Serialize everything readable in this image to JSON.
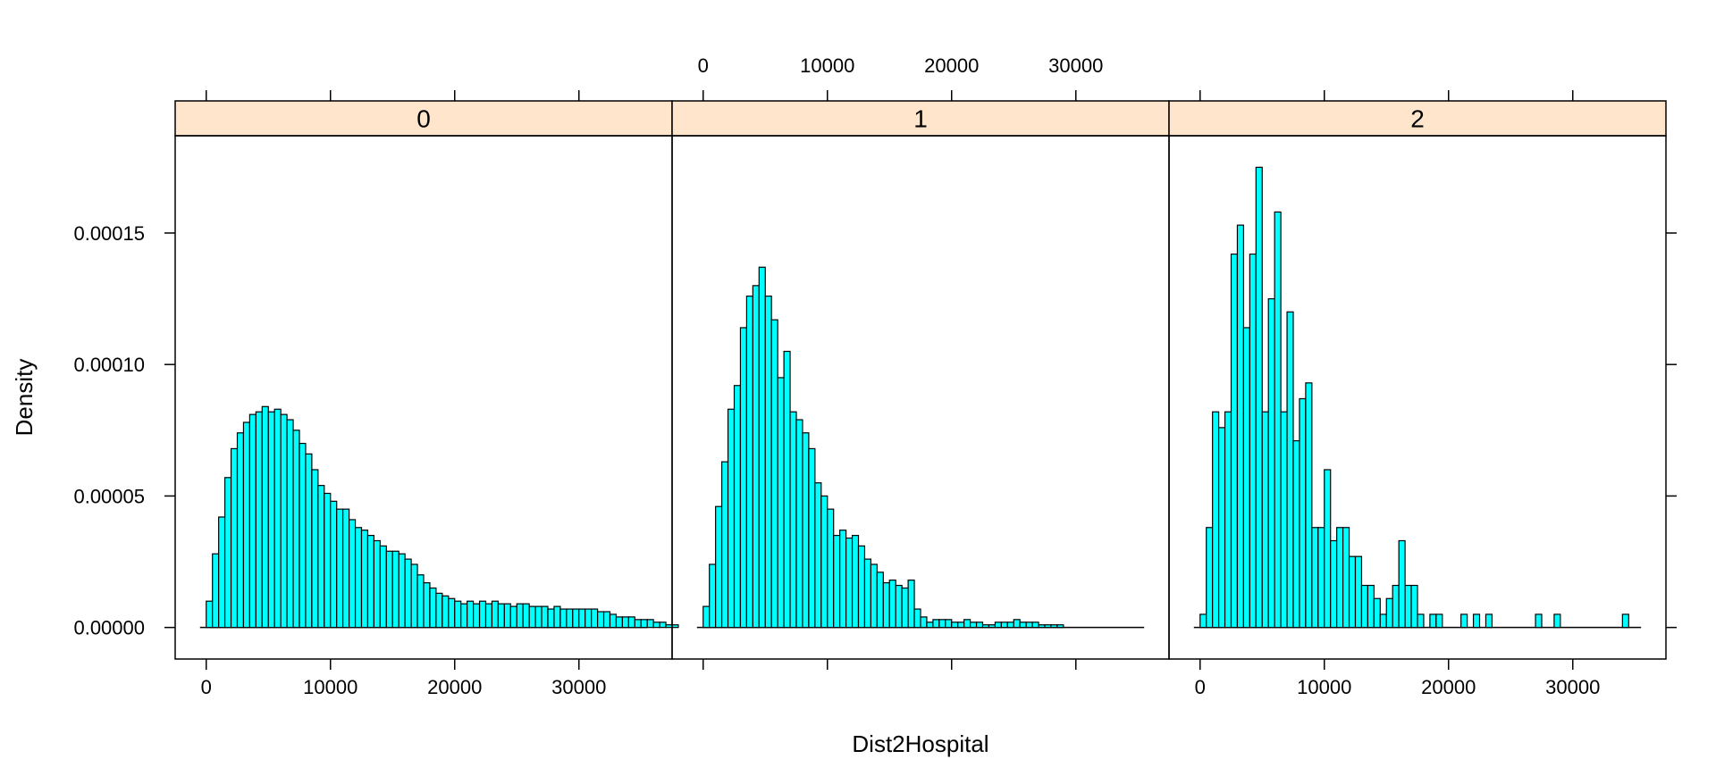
{
  "chart_data": {
    "type": "bar",
    "subtype": "histogram-trellis",
    "xlabel": "Dist2Hospital",
    "ylabel": "Density",
    "xlim": [
      -2500,
      37500
    ],
    "ylim": [
      -1.2e-05,
      0.000187
    ],
    "x_ticks": [
      0,
      10000,
      20000,
      30000
    ],
    "x_tick_labels": [
      "0",
      "10000",
      "20000",
      "30000"
    ],
    "y_ticks": [
      0,
      5e-05,
      0.0001,
      0.00015
    ],
    "y_tick_labels": [
      "0.00000",
      "0.00005",
      "0.00010",
      "0.00015"
    ],
    "bin_start": 0,
    "bin_width": 500,
    "baseline_extent": [
      -500,
      35500
    ],
    "colors": {
      "bar_fill": "#00ffff",
      "bar_stroke": "#000000",
      "strip_bg": "#ffe5cc"
    },
    "grid": false,
    "legend": "none",
    "panels": [
      {
        "strip_label": "0",
        "values": [
          1e-05,
          2.8e-05,
          4.2e-05,
          5.7e-05,
          6.8e-05,
          7.4e-05,
          7.8e-05,
          8.1e-05,
          8.2e-05,
          8.4e-05,
          8.2e-05,
          8.3e-05,
          8.1e-05,
          7.9e-05,
          7.5e-05,
          7e-05,
          6.6e-05,
          6e-05,
          5.4e-05,
          5.1e-05,
          4.8e-05,
          4.5e-05,
          4.5e-05,
          4.1e-05,
          3.8e-05,
          3.7e-05,
          3.5e-05,
          3.3e-05,
          3.1e-05,
          2.9e-05,
          2.9e-05,
          2.8e-05,
          2.6e-05,
          2.4e-05,
          2e-05,
          1.7e-05,
          1.5e-05,
          1.3e-05,
          1.2e-05,
          1.1e-05,
          1e-05,
          9e-06,
          1e-05,
          9e-06,
          1e-05,
          9e-06,
          1e-05,
          9e-06,
          9e-06,
          8e-06,
          9e-06,
          9e-06,
          8e-06,
          8e-06,
          8e-06,
          7e-06,
          8e-06,
          7e-06,
          7e-06,
          7e-06,
          7e-06,
          7e-06,
          7e-06,
          6e-06,
          6e-06,
          5e-06,
          4e-06,
          4e-06,
          4e-06,
          3e-06,
          3e-06,
          3e-06,
          2e-06,
          2e-06,
          1e-06,
          1e-06
        ]
      },
      {
        "strip_label": "1",
        "values": [
          8e-06,
          2.4e-05,
          4.6e-05,
          6.3e-05,
          8.3e-05,
          9.2e-05,
          0.000114,
          0.000126,
          0.00013,
          0.000137,
          0.000126,
          0.000117,
          9.5e-05,
          0.000105,
          8.2e-05,
          7.9e-05,
          7.4e-05,
          6.8e-05,
          5.5e-05,
          5e-05,
          4.5e-05,
          3.5e-05,
          3.7e-05,
          3.4e-05,
          3.5e-05,
          3.1e-05,
          2.6e-05,
          2.4e-05,
          2.1e-05,
          1.7e-05,
          1.8e-05,
          1.6e-05,
          1.5e-05,
          1.8e-05,
          7e-06,
          4e-06,
          2e-06,
          3e-06,
          3e-06,
          3e-06,
          2e-06,
          2e-06,
          3e-06,
          2e-06,
          2e-06,
          1e-06,
          1e-06,
          2e-06,
          2e-06,
          2e-06,
          3e-06,
          2e-06,
          2e-06,
          2e-06,
          1e-06,
          1e-06,
          1e-06,
          1e-06
        ]
      },
      {
        "strip_label": "2",
        "values": [
          5e-06,
          3.8e-05,
          8.2e-05,
          7.6e-05,
          8.2e-05,
          0.000142,
          0.000153,
          0.000114,
          0.000142,
          0.000175,
          8.2e-05,
          0.000125,
          0.000158,
          8.2e-05,
          0.00012,
          7.1e-05,
          8.7e-05,
          9.3e-05,
          3.8e-05,
          3.8e-05,
          6e-05,
          3.3e-05,
          3.8e-05,
          3.8e-05,
          2.7e-05,
          2.7e-05,
          1.6e-05,
          1.6e-05,
          1.1e-05,
          5e-06,
          1.1e-05,
          1.6e-05,
          3.3e-05,
          1.6e-05,
          1.6e-05,
          5e-06,
          0,
          5e-06,
          5e-06,
          0,
          0,
          0,
          5e-06,
          0,
          5e-06,
          0,
          5e-06,
          0,
          0,
          0,
          0,
          0,
          0,
          0,
          5e-06,
          0,
          0,
          5e-06,
          0,
          0,
          0,
          0,
          0,
          0,
          0,
          0,
          0,
          0,
          5e-06
        ]
      }
    ]
  }
}
